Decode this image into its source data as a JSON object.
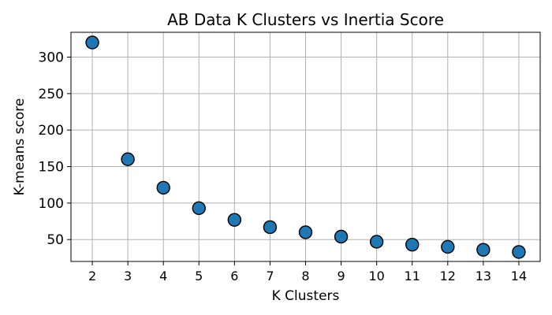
{
  "chart_data": {
    "type": "scatter",
    "title": "AB Data K Clusters vs Inertia Score",
    "xlabel": "K Clusters",
    "ylabel": "K-means score",
    "x": [
      2,
      3,
      4,
      5,
      6,
      7,
      8,
      9,
      10,
      11,
      12,
      13,
      14
    ],
    "y": [
      320,
      160,
      121,
      93,
      77,
      67,
      60,
      54,
      47,
      43,
      40,
      36,
      33
    ],
    "xticks": [
      2,
      3,
      4,
      5,
      6,
      7,
      8,
      9,
      10,
      11,
      12,
      13,
      14
    ],
    "yticks": [
      50,
      100,
      150,
      200,
      250,
      300
    ],
    "xlim": [
      1.4,
      14.6
    ],
    "ylim": [
      20,
      334
    ],
    "grid": true,
    "point_color": "#1f77b4",
    "edge_color": "#000000"
  }
}
